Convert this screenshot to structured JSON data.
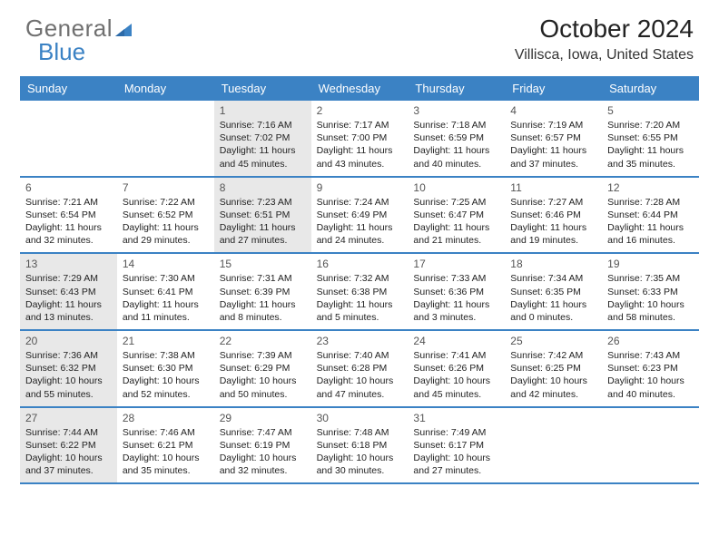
{
  "logo": {
    "text_general": "General",
    "text_blue": "Blue"
  },
  "title": "October 2024",
  "location": "Villisca, Iowa, United States",
  "colors": {
    "header_bg": "#3b82c4",
    "header_text": "#ffffff",
    "shaded_bg": "#e8e8e8",
    "border": "#3b82c4",
    "text": "#222222",
    "daynum": "#555555",
    "logo_gray": "#707070",
    "logo_blue": "#3b82c4"
  },
  "day_names": [
    "Sunday",
    "Monday",
    "Tuesday",
    "Wednesday",
    "Thursday",
    "Friday",
    "Saturday"
  ],
  "weeks": [
    [
      {
        "num": "",
        "shaded": false,
        "lines": []
      },
      {
        "num": "",
        "shaded": false,
        "lines": []
      },
      {
        "num": "1",
        "shaded": true,
        "lines": [
          "Sunrise: 7:16 AM",
          "Sunset: 7:02 PM",
          "Daylight: 11 hours",
          "and 45 minutes."
        ]
      },
      {
        "num": "2",
        "shaded": false,
        "lines": [
          "Sunrise: 7:17 AM",
          "Sunset: 7:00 PM",
          "Daylight: 11 hours",
          "and 43 minutes."
        ]
      },
      {
        "num": "3",
        "shaded": false,
        "lines": [
          "Sunrise: 7:18 AM",
          "Sunset: 6:59 PM",
          "Daylight: 11 hours",
          "and 40 minutes."
        ]
      },
      {
        "num": "4",
        "shaded": false,
        "lines": [
          "Sunrise: 7:19 AM",
          "Sunset: 6:57 PM",
          "Daylight: 11 hours",
          "and 37 minutes."
        ]
      },
      {
        "num": "5",
        "shaded": false,
        "lines": [
          "Sunrise: 7:20 AM",
          "Sunset: 6:55 PM",
          "Daylight: 11 hours",
          "and 35 minutes."
        ]
      }
    ],
    [
      {
        "num": "6",
        "shaded": false,
        "lines": [
          "Sunrise: 7:21 AM",
          "Sunset: 6:54 PM",
          "Daylight: 11 hours",
          "and 32 minutes."
        ]
      },
      {
        "num": "7",
        "shaded": false,
        "lines": [
          "Sunrise: 7:22 AM",
          "Sunset: 6:52 PM",
          "Daylight: 11 hours",
          "and 29 minutes."
        ]
      },
      {
        "num": "8",
        "shaded": true,
        "lines": [
          "Sunrise: 7:23 AM",
          "Sunset: 6:51 PM",
          "Daylight: 11 hours",
          "and 27 minutes."
        ]
      },
      {
        "num": "9",
        "shaded": false,
        "lines": [
          "Sunrise: 7:24 AM",
          "Sunset: 6:49 PM",
          "Daylight: 11 hours",
          "and 24 minutes."
        ]
      },
      {
        "num": "10",
        "shaded": false,
        "lines": [
          "Sunrise: 7:25 AM",
          "Sunset: 6:47 PM",
          "Daylight: 11 hours",
          "and 21 minutes."
        ]
      },
      {
        "num": "11",
        "shaded": false,
        "lines": [
          "Sunrise: 7:27 AM",
          "Sunset: 6:46 PM",
          "Daylight: 11 hours",
          "and 19 minutes."
        ]
      },
      {
        "num": "12",
        "shaded": false,
        "lines": [
          "Sunrise: 7:28 AM",
          "Sunset: 6:44 PM",
          "Daylight: 11 hours",
          "and 16 minutes."
        ]
      }
    ],
    [
      {
        "num": "13",
        "shaded": true,
        "lines": [
          "Sunrise: 7:29 AM",
          "Sunset: 6:43 PM",
          "Daylight: 11 hours",
          "and 13 minutes."
        ]
      },
      {
        "num": "14",
        "shaded": false,
        "lines": [
          "Sunrise: 7:30 AM",
          "Sunset: 6:41 PM",
          "Daylight: 11 hours",
          "and 11 minutes."
        ]
      },
      {
        "num": "15",
        "shaded": false,
        "lines": [
          "Sunrise: 7:31 AM",
          "Sunset: 6:39 PM",
          "Daylight: 11 hours",
          "and 8 minutes."
        ]
      },
      {
        "num": "16",
        "shaded": false,
        "lines": [
          "Sunrise: 7:32 AM",
          "Sunset: 6:38 PM",
          "Daylight: 11 hours",
          "and 5 minutes."
        ]
      },
      {
        "num": "17",
        "shaded": false,
        "lines": [
          "Sunrise: 7:33 AM",
          "Sunset: 6:36 PM",
          "Daylight: 11 hours",
          "and 3 minutes."
        ]
      },
      {
        "num": "18",
        "shaded": false,
        "lines": [
          "Sunrise: 7:34 AM",
          "Sunset: 6:35 PM",
          "Daylight: 11 hours",
          "and 0 minutes."
        ]
      },
      {
        "num": "19",
        "shaded": false,
        "lines": [
          "Sunrise: 7:35 AM",
          "Sunset: 6:33 PM",
          "Daylight: 10 hours",
          "and 58 minutes."
        ]
      }
    ],
    [
      {
        "num": "20",
        "shaded": true,
        "lines": [
          "Sunrise: 7:36 AM",
          "Sunset: 6:32 PM",
          "Daylight: 10 hours",
          "and 55 minutes."
        ]
      },
      {
        "num": "21",
        "shaded": false,
        "lines": [
          "Sunrise: 7:38 AM",
          "Sunset: 6:30 PM",
          "Daylight: 10 hours",
          "and 52 minutes."
        ]
      },
      {
        "num": "22",
        "shaded": false,
        "lines": [
          "Sunrise: 7:39 AM",
          "Sunset: 6:29 PM",
          "Daylight: 10 hours",
          "and 50 minutes."
        ]
      },
      {
        "num": "23",
        "shaded": false,
        "lines": [
          "Sunrise: 7:40 AM",
          "Sunset: 6:28 PM",
          "Daylight: 10 hours",
          "and 47 minutes."
        ]
      },
      {
        "num": "24",
        "shaded": false,
        "lines": [
          "Sunrise: 7:41 AM",
          "Sunset: 6:26 PM",
          "Daylight: 10 hours",
          "and 45 minutes."
        ]
      },
      {
        "num": "25",
        "shaded": false,
        "lines": [
          "Sunrise: 7:42 AM",
          "Sunset: 6:25 PM",
          "Daylight: 10 hours",
          "and 42 minutes."
        ]
      },
      {
        "num": "26",
        "shaded": false,
        "lines": [
          "Sunrise: 7:43 AM",
          "Sunset: 6:23 PM",
          "Daylight: 10 hours",
          "and 40 minutes."
        ]
      }
    ],
    [
      {
        "num": "27",
        "shaded": true,
        "lines": [
          "Sunrise: 7:44 AM",
          "Sunset: 6:22 PM",
          "Daylight: 10 hours",
          "and 37 minutes."
        ]
      },
      {
        "num": "28",
        "shaded": false,
        "lines": [
          "Sunrise: 7:46 AM",
          "Sunset: 6:21 PM",
          "Daylight: 10 hours",
          "and 35 minutes."
        ]
      },
      {
        "num": "29",
        "shaded": false,
        "lines": [
          "Sunrise: 7:47 AM",
          "Sunset: 6:19 PM",
          "Daylight: 10 hours",
          "and 32 minutes."
        ]
      },
      {
        "num": "30",
        "shaded": false,
        "lines": [
          "Sunrise: 7:48 AM",
          "Sunset: 6:18 PM",
          "Daylight: 10 hours",
          "and 30 minutes."
        ]
      },
      {
        "num": "31",
        "shaded": false,
        "lines": [
          "Sunrise: 7:49 AM",
          "Sunset: 6:17 PM",
          "Daylight: 10 hours",
          "and 27 minutes."
        ]
      },
      {
        "num": "",
        "shaded": false,
        "lines": []
      },
      {
        "num": "",
        "shaded": false,
        "lines": []
      }
    ]
  ]
}
